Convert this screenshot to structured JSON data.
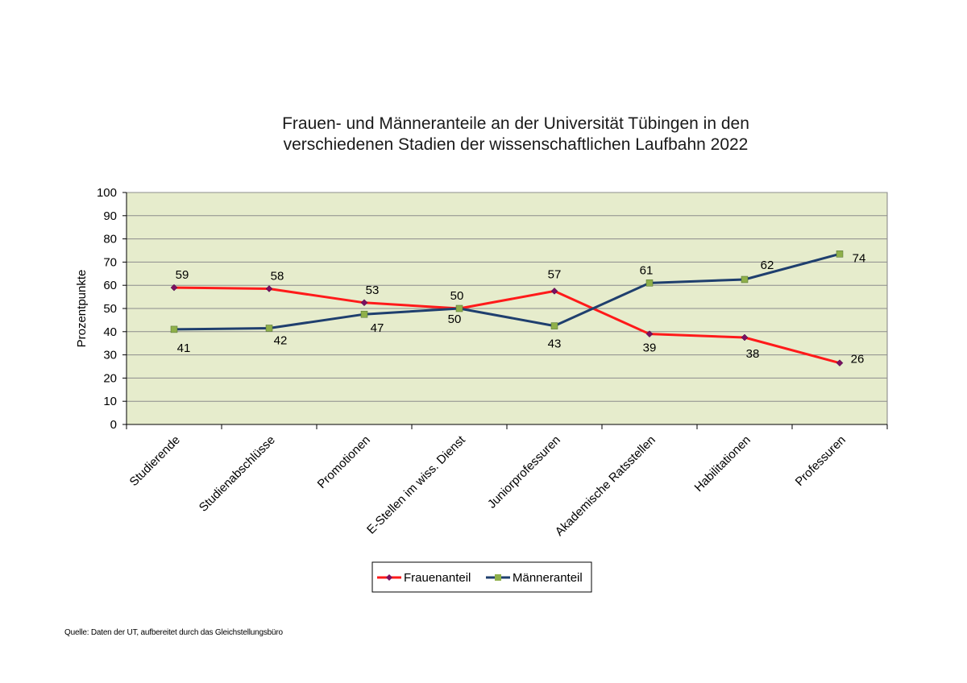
{
  "chart_data": {
    "type": "line",
    "title": [
      "Frauen- und Männeranteile an der Universität Tübingen in den",
      "verschiedenen Stadien der wissenschaftlichen Laufbahn 2022"
    ],
    "xlabel": "",
    "ylabel": "Prozentpunkte",
    "ylim": [
      0,
      100
    ],
    "yticks": [
      0,
      10,
      20,
      30,
      40,
      50,
      60,
      70,
      80,
      90,
      100
    ],
    "categories": [
      "Studierende",
      "Studienabschlüsse",
      "Promotionen",
      "E-Stellen im wiss. Dienst",
      "Juniorprofessuren",
      "Akademische Ratsstellen",
      "Habilitationen",
      "Professuren"
    ],
    "series": [
      {
        "name": "Frauenanteil",
        "color": "#ff1a1a",
        "marker_color": "#7a1060",
        "values": [
          59,
          58.5,
          52.5,
          50,
          57.5,
          39,
          37.5,
          26.5
        ],
        "labels": [
          "59",
          "58",
          "53",
          "50",
          "57",
          "39",
          "38",
          "26"
        ]
      },
      {
        "name": "Männeranteil",
        "color": "#1f3f6e",
        "marker_color": "#8fb04a",
        "values": [
          41,
          41.5,
          47.5,
          50,
          42.5,
          61,
          62.5,
          73.5
        ],
        "labels": [
          "41",
          "42",
          "47",
          "50",
          "43",
          "61",
          "62",
          "74"
        ]
      }
    ],
    "plot_background": "#e6eccc",
    "grid": true,
    "legend_position": "bottom"
  },
  "source": "Quelle: Daten der UT, aufbereitet durch das Gleichstellungsbüro"
}
